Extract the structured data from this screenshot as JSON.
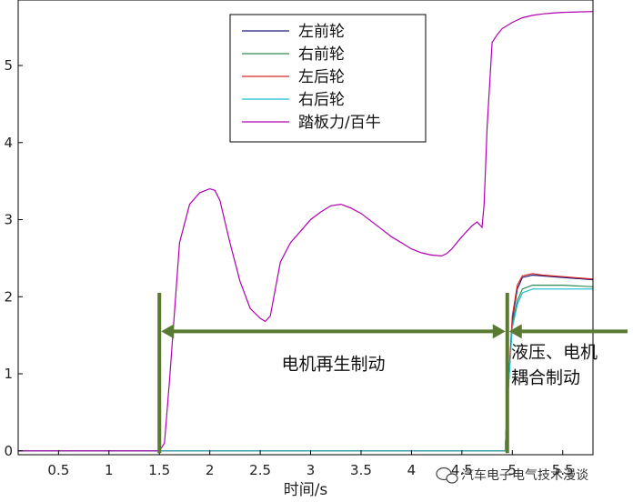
{
  "chart_data": {
    "type": "line",
    "title": "",
    "xlabel": "时间/s",
    "ylabel": "",
    "xlim": [
      0.1,
      5.8
    ],
    "ylim": [
      -0.05,
      5.85
    ],
    "xticks": [
      "0.5",
      "1",
      "1.5",
      "2",
      "2.5",
      "3",
      "3.5",
      "4",
      "4.5",
      "5",
      "5.5"
    ],
    "xtick_values": [
      0.5,
      1,
      1.5,
      2,
      2.5,
      3,
      3.5,
      4,
      4.5,
      5,
      5.5
    ],
    "yticks": [
      "0",
      "1",
      "2",
      "3",
      "4",
      "5"
    ],
    "ytick_values": [
      0,
      1,
      2,
      3,
      4,
      5
    ],
    "grid": false,
    "legend_position": "top-center",
    "series": [
      {
        "name": "左前轮",
        "color": "#1f1f7a",
        "x": [
          0.1,
          4.93,
          4.95,
          5.0,
          5.05,
          5.1,
          5.2,
          5.3,
          5.5,
          5.8
        ],
        "y": [
          0,
          0,
          0.6,
          1.7,
          2.1,
          2.25,
          2.28,
          2.27,
          2.25,
          2.22
        ]
      },
      {
        "name": "右前轮",
        "color": "#2e8b57",
        "x": [
          0.1,
          4.93,
          4.95,
          5.0,
          5.05,
          5.1,
          5.2,
          5.3,
          5.5,
          5.8
        ],
        "y": [
          0,
          0,
          0.6,
          1.65,
          1.95,
          2.1,
          2.15,
          2.15,
          2.15,
          2.13
        ]
      },
      {
        "name": "左后轮",
        "color": "#d62728",
        "x": [
          0.1,
          4.93,
          4.95,
          5.0,
          5.05,
          5.1,
          5.2,
          5.3,
          5.5,
          5.8
        ],
        "y": [
          0,
          0,
          0.6,
          1.75,
          2.15,
          2.27,
          2.3,
          2.28,
          2.26,
          2.23
        ]
      },
      {
        "name": "右后轮",
        "color": "#17becf",
        "x": [
          0.1,
          4.93,
          4.95,
          5.0,
          5.05,
          5.1,
          5.2,
          5.3,
          5.5,
          5.8
        ],
        "y": [
          0,
          0,
          0.6,
          1.6,
          1.9,
          2.05,
          2.1,
          2.1,
          2.1,
          2.1
        ]
      },
      {
        "name": "踏板力/百牛",
        "color": "#b000b0",
        "x": [
          0.1,
          1.5,
          1.55,
          1.6,
          1.7,
          1.8,
          1.9,
          2.0,
          2.05,
          2.1,
          2.2,
          2.3,
          2.4,
          2.5,
          2.55,
          2.6,
          2.65,
          2.7,
          2.8,
          2.9,
          3.0,
          3.1,
          3.2,
          3.3,
          3.4,
          3.5,
          3.6,
          3.7,
          3.8,
          3.9,
          4.0,
          4.1,
          4.2,
          4.3,
          4.35,
          4.4,
          4.45,
          4.5,
          4.55,
          4.6,
          4.65,
          4.7,
          4.72,
          4.75,
          4.8,
          4.85,
          4.9,
          5.0,
          5.1,
          5.2,
          5.3,
          5.4,
          5.5,
          5.8
        ],
        "y": [
          0,
          0,
          0.1,
          0.9,
          2.7,
          3.2,
          3.35,
          3.4,
          3.38,
          3.25,
          2.7,
          2.2,
          1.85,
          1.72,
          1.68,
          1.75,
          2.1,
          2.45,
          2.7,
          2.85,
          3.0,
          3.1,
          3.18,
          3.2,
          3.15,
          3.08,
          2.98,
          2.88,
          2.78,
          2.7,
          2.62,
          2.57,
          2.54,
          2.53,
          2.56,
          2.62,
          2.7,
          2.78,
          2.85,
          2.92,
          2.97,
          2.9,
          3.2,
          4.2,
          5.3,
          5.4,
          5.48,
          5.56,
          5.62,
          5.65,
          5.67,
          5.68,
          5.69,
          5.7
        ]
      }
    ],
    "annotations": [
      {
        "text": "电机再生制动",
        "x_from": 1.5,
        "x_to": 4.95,
        "y": 1.55,
        "line": "[1.5, 4.95]"
      },
      {
        "text_line1": "液压、电机",
        "text_line2": "耦合制动",
        "x_from": 4.95,
        "x_to": 5.8,
        "y": 1.55
      }
    ],
    "annotation_color": "#5a7a33"
  },
  "watermark": {
    "text": "汽车电子电气技术漫谈",
    "icon": "wechat-icon"
  }
}
